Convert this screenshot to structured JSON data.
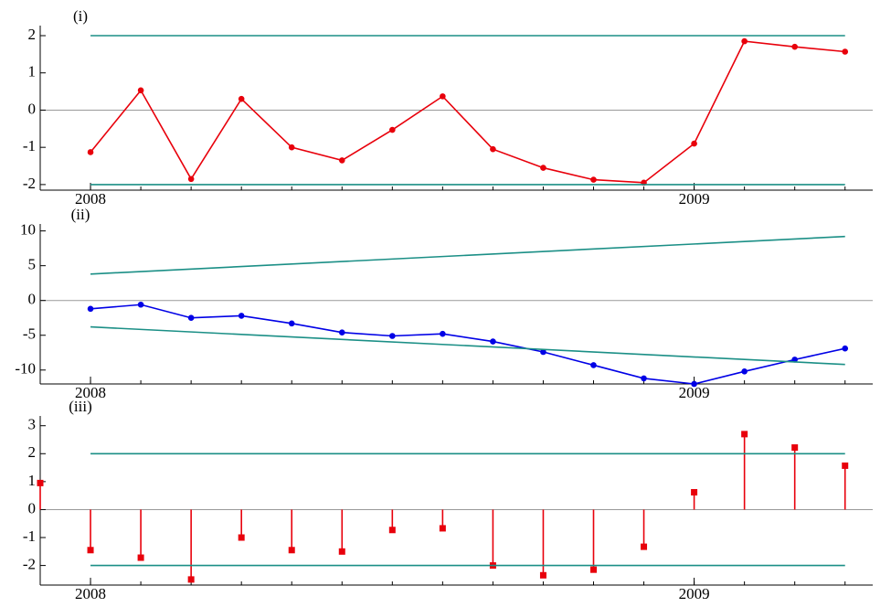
{
  "chart_data": [
    {
      "type": "line",
      "title": "(i)",
      "x": [
        0,
        1,
        2,
        3,
        4,
        5,
        6,
        7,
        8,
        9,
        10,
        11,
        12,
        13,
        14,
        15
      ],
      "series": [
        {
          "color": "#e8000b",
          "markers": "circle",
          "values": [
            -1.13,
            0.53,
            -1.85,
            0.3,
            -1.0,
            -1.35,
            -0.53,
            0.37,
            -1.05,
            -1.55,
            -1.87,
            -1.95,
            -0.9,
            1.85,
            1.7,
            1.57
          ]
        },
        {
          "color": "#1b8f86",
          "x": [
            0,
            15
          ],
          "values": [
            2,
            2
          ]
        },
        {
          "color": "#1b8f86",
          "x": [
            0,
            15
          ],
          "values": [
            -2,
            -2
          ]
        }
      ],
      "xlim": [
        -1,
        15.55
      ],
      "xticks": [
        {
          "value": 0,
          "label": "2008"
        },
        {
          "value": 12,
          "label": "2009"
        }
      ],
      "ylim": [
        -2.15,
        2.27
      ],
      "yticks": [
        -2,
        -1,
        0,
        1,
        2
      ]
    },
    {
      "type": "line",
      "title": "(ii)",
      "x": [
        0,
        1,
        2,
        3,
        4,
        5,
        6,
        7,
        8,
        9,
        10,
        11,
        12,
        13,
        14,
        15
      ],
      "series": [
        {
          "color": "#0000e6",
          "markers": "circle",
          "values": [
            -1.2,
            -0.6,
            -2.5,
            -2.2,
            -3.3,
            -4.6,
            -5.1,
            -4.8,
            -5.9,
            -7.4,
            -9.3,
            -11.2,
            -12,
            -10.2,
            -8.5,
            -6.9
          ]
        },
        {
          "color": "#1b8f86",
          "x": [
            0,
            15
          ],
          "values": [
            3.8,
            9.2
          ]
        },
        {
          "color": "#1b8f86",
          "x": [
            0,
            15
          ],
          "values": [
            -3.8,
            -9.2
          ]
        }
      ],
      "xlim": [
        -1,
        15.55
      ],
      "xticks": [
        {
          "value": 0,
          "label": "2008"
        },
        {
          "value": 12,
          "label": "2009"
        }
      ],
      "ylim": [
        -12,
        11
      ],
      "yticks": [
        -10,
        -5,
        0,
        5,
        10
      ]
    },
    {
      "type": "stem",
      "title": "(iii)",
      "x": [
        -1,
        0,
        1,
        2,
        3,
        4,
        5,
        6,
        7,
        8,
        9,
        10,
        11,
        12,
        13,
        14,
        15
      ],
      "series": [
        {
          "color": "#e8000b",
          "markers": "square",
          "values": [
            0.95,
            -1.45,
            -1.72,
            -2.5,
            -1.0,
            -1.45,
            -1.5,
            -0.73,
            -0.67,
            -2.0,
            -2.35,
            -2.15,
            -1.33,
            0.62,
            2.7,
            2.22,
            1.57
          ]
        },
        {
          "color": "#1b8f86",
          "x": [
            0,
            15
          ],
          "values": [
            2,
            2
          ]
        },
        {
          "color": "#1b8f86",
          "x": [
            0,
            15
          ],
          "values": [
            -2,
            -2
          ]
        }
      ],
      "xlim": [
        -1,
        15.55
      ],
      "xticks": [
        {
          "value": 0,
          "label": "2008"
        },
        {
          "value": 12,
          "label": "2009"
        }
      ],
      "ylim": [
        -2.7,
        3.35
      ],
      "yticks": [
        -2,
        -1,
        0,
        1,
        2,
        3
      ]
    }
  ]
}
